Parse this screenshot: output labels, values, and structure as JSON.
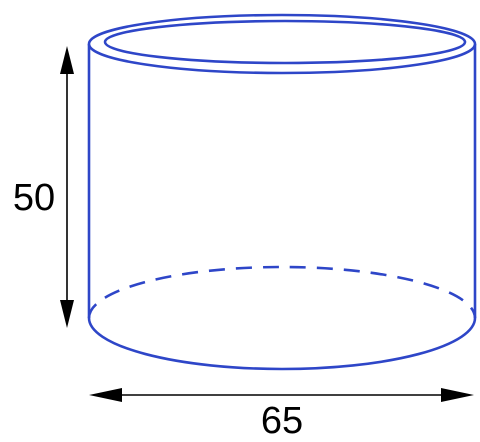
{
  "diagram": {
    "type": "cylinder",
    "height_label": "50",
    "width_label": "65",
    "colors": {
      "outline": "#2e46c8",
      "dimension": "#000000",
      "background": "#ffffff"
    }
  }
}
